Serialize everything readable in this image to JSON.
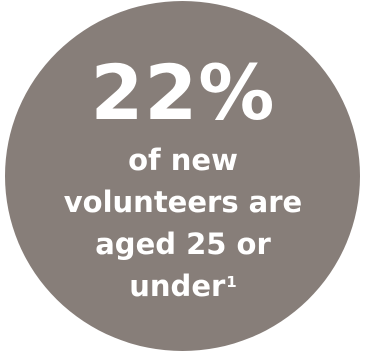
{
  "infographic": {
    "stat": "22%",
    "caption_lines": [
      "of new",
      "volunteers are",
      "aged 25 or",
      "under"
    ],
    "footnote_marker": "1",
    "circle_color": "#877e79",
    "text_color": "#ffffff"
  }
}
